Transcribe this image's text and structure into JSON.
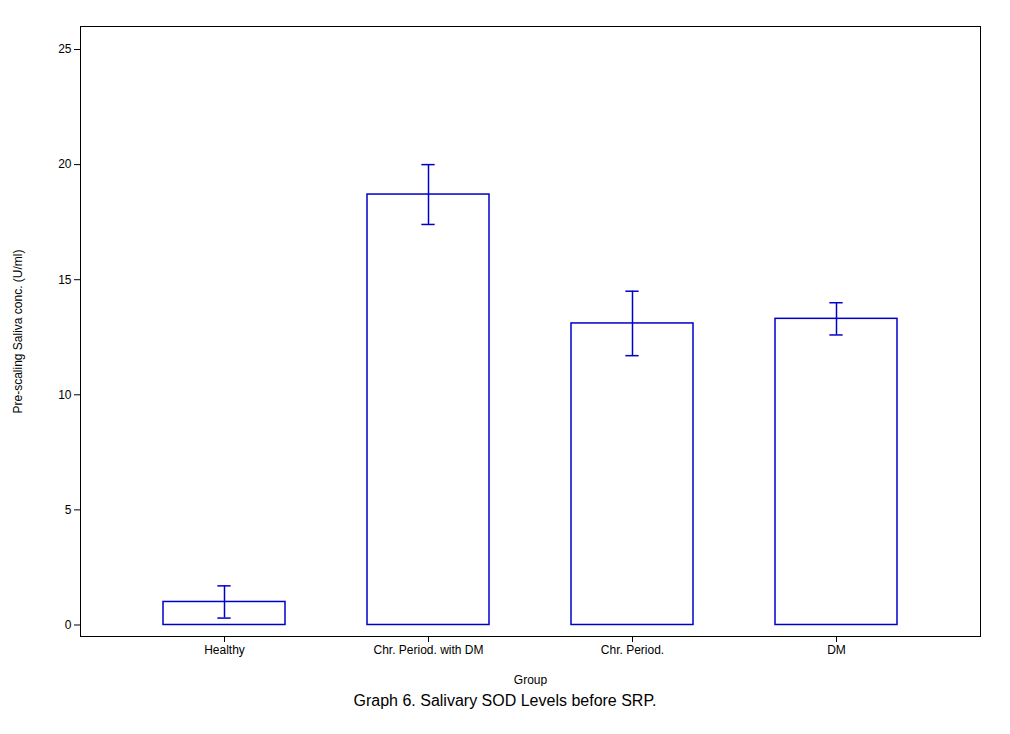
{
  "chart_data": {
    "type": "bar",
    "caption": "Graph 6. Salivary SOD Levels before SRP.",
    "xlabel": "Group",
    "ylabel": "Pre-scaling Saliva conc. (U/ml)",
    "categories": [
      "Healthy",
      "Chr. Period. with DM",
      "Chr. Period.",
      "DM"
    ],
    "values": [
      1.0,
      18.7,
      13.1,
      13.3
    ],
    "errors": [
      0.7,
      1.3,
      1.4,
      0.7
    ],
    "color": "#0000CC",
    "ylim": [
      -0.5,
      26
    ],
    "yticks": [
      0,
      5,
      10,
      15,
      20,
      25
    ],
    "grid": false
  }
}
